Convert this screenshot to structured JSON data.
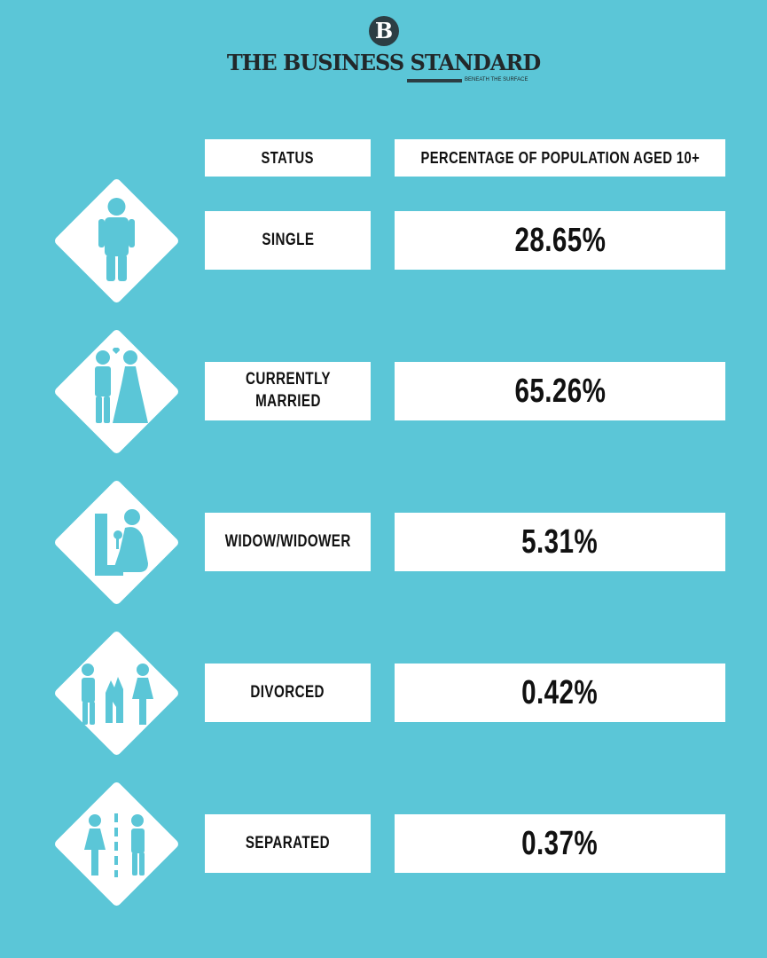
{
  "brand": {
    "badge": "B",
    "name": "THE BUSINESS STANDARD",
    "tagline": "BENEATH THE SURFACE"
  },
  "headers": {
    "status": "STATUS",
    "percentage": "PERCENTAGE OF POPULATION AGED 10+"
  },
  "colors": {
    "background": "#5bc6d7",
    "box": "#ffffff",
    "icon": "#5bc6d7",
    "text": "#111111"
  },
  "chart_data": {
    "type": "table",
    "columns": [
      "STATUS",
      "PERCENTAGE OF POPULATION AGED 10+"
    ],
    "rows": [
      {
        "status": "SINGLE",
        "percentage": "28.65%",
        "value": 28.65,
        "icon": "single-person-icon"
      },
      {
        "status": "CURRENTLY\nMARRIED",
        "percentage": "65.26%",
        "value": 65.26,
        "icon": "married-couple-icon"
      },
      {
        "status": "WIDOW/WIDOWER",
        "percentage": "5.31%",
        "value": 5.31,
        "icon": "widow-grieving-icon"
      },
      {
        "status": "DIVORCED",
        "percentage": "0.42%",
        "value": 0.42,
        "icon": "divorced-couple-icon"
      },
      {
        "status": "SEPARATED",
        "percentage": "0.37%",
        "value": 0.37,
        "icon": "separated-couple-icon"
      }
    ]
  }
}
